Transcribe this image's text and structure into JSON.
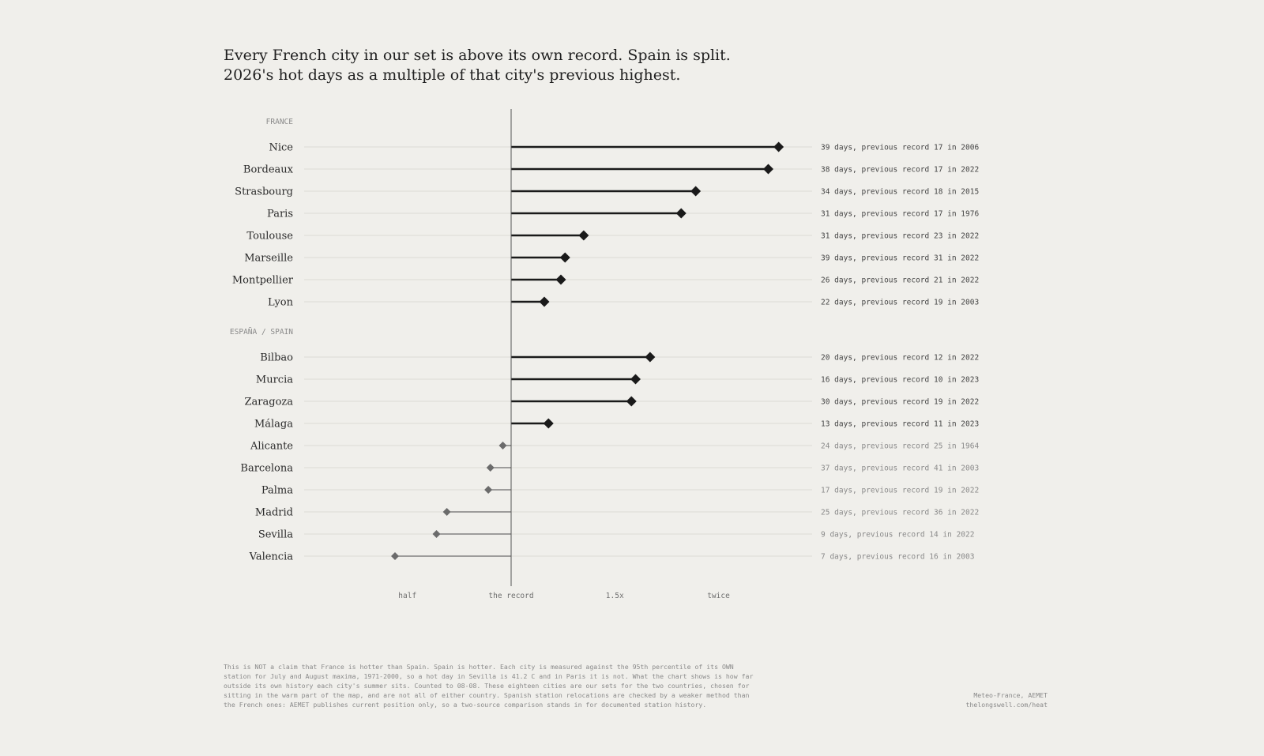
{
  "headline": {
    "line1": "Every French city in our set is above its own record. Spain is split.",
    "line2": "2026's hot days as a multiple of that city's previous highest."
  },
  "chart_data": {
    "type": "dot-lollipop",
    "x_baseline": 1.0,
    "xlim": [
      0.0,
      2.0
    ],
    "x_ticks": [
      {
        "value": 0.5,
        "label": "half"
      },
      {
        "value": 1.0,
        "label": "the record"
      },
      {
        "value": 1.5,
        "label": "1.5x"
      },
      {
        "value": 2.0,
        "label": "twice"
      }
    ],
    "colors": {
      "above": "#1a1a1a",
      "below": "#6b6b6b",
      "gridline": "#dcdbd6",
      "axis": "#555555"
    },
    "groups": [
      {
        "name": "FRANCE",
        "cities": [
          {
            "city": "Nice",
            "days": 39,
            "record": 17,
            "record_year": 2006,
            "ratio": 2.29,
            "label": "39 days, previous record 17 in 2006"
          },
          {
            "city": "Bordeaux",
            "days": 38,
            "record": 17,
            "record_year": 2022,
            "ratio": 2.24,
            "label": "38 days, previous record 17 in 2022"
          },
          {
            "city": "Strasbourg",
            "days": 34,
            "record": 18,
            "record_year": 2015,
            "ratio": 1.89,
            "label": "34 days, previous record 18 in 2015"
          },
          {
            "city": "Paris",
            "days": 31,
            "record": 17,
            "record_year": 1976,
            "ratio": 1.82,
            "label": "31 days, previous record 17 in 1976"
          },
          {
            "city": "Toulouse",
            "days": 31,
            "record": 23,
            "record_year": 2022,
            "ratio": 1.35,
            "label": "31 days, previous record 23 in 2022"
          },
          {
            "city": "Marseille",
            "days": 39,
            "record": 31,
            "record_year": 2022,
            "ratio": 1.26,
            "label": "39 days, previous record 31 in 2022"
          },
          {
            "city": "Montpellier",
            "days": 26,
            "record": 21,
            "record_year": 2022,
            "ratio": 1.24,
            "label": "26 days, previous record 21 in 2022"
          },
          {
            "city": "Lyon",
            "days": 22,
            "record": 19,
            "record_year": 2003,
            "ratio": 1.16,
            "label": "22 days, previous record 19 in 2003"
          }
        ]
      },
      {
        "name": "ESPAÑA / SPAIN",
        "cities": [
          {
            "city": "Bilbao",
            "days": 20,
            "record": 12,
            "record_year": 2022,
            "ratio": 1.67,
            "label": "20 days, previous record 12 in 2022"
          },
          {
            "city": "Murcia",
            "days": 16,
            "record": 10,
            "record_year": 2023,
            "ratio": 1.6,
            "label": "16 days, previous record 10 in 2023"
          },
          {
            "city": "Zaragoza",
            "days": 30,
            "record": 19,
            "record_year": 2022,
            "ratio": 1.58,
            "label": "30 days, previous record 19 in 2022"
          },
          {
            "city": "Málaga",
            "days": 13,
            "record": 11,
            "record_year": 2023,
            "ratio": 1.18,
            "label": "13 days, previous record 11 in 2023"
          },
          {
            "city": "Alicante",
            "days": 24,
            "record": 25,
            "record_year": 1964,
            "ratio": 0.96,
            "label": "24 days, previous record 25 in 1964"
          },
          {
            "city": "Barcelona",
            "days": 37,
            "record": 41,
            "record_year": 2003,
            "ratio": 0.9,
            "label": "37 days, previous record 41 in 2003"
          },
          {
            "city": "Palma",
            "days": 17,
            "record": 19,
            "record_year": 2022,
            "ratio": 0.89,
            "label": "17 days, previous record 19 in 2022"
          },
          {
            "city": "Madrid",
            "days": 25,
            "record": 36,
            "record_year": 2022,
            "ratio": 0.69,
            "label": "25 days, previous record 36 in 2022"
          },
          {
            "city": "Sevilla",
            "days": 9,
            "record": 14,
            "record_year": 2022,
            "ratio": 0.64,
            "label": "9 days, previous record 14 in 2022"
          },
          {
            "city": "Valencia",
            "days": 7,
            "record": 16,
            "record_year": 2003,
            "ratio": 0.44,
            "label": "7 days, previous record 16 in 2003"
          }
        ]
      }
    ]
  },
  "footnote": {
    "lines": [
      "This is NOT a claim that France is hotter than Spain. Spain is hotter. Each city is measured against the 95th percentile of its OWN",
      "station for July and August maxima, 1971-2000, so a hot day in Sevilla is 41.2 C and in Paris it is not. What the chart shows is how far",
      "outside its own history each city's summer sits. Counted to 08-08. These eighteen cities are our sets for the two countries, chosen for",
      "sitting in the warm part of the map, and are not all of either country. Spanish station relocations are checked by a weaker method than",
      "the French ones: AEMET publishes current position only, so a two-source comparison stands in for documented station history."
    ]
  },
  "source": {
    "line1": "Meteo-France, AEMET",
    "line2": "thelongswell.com/heat"
  }
}
